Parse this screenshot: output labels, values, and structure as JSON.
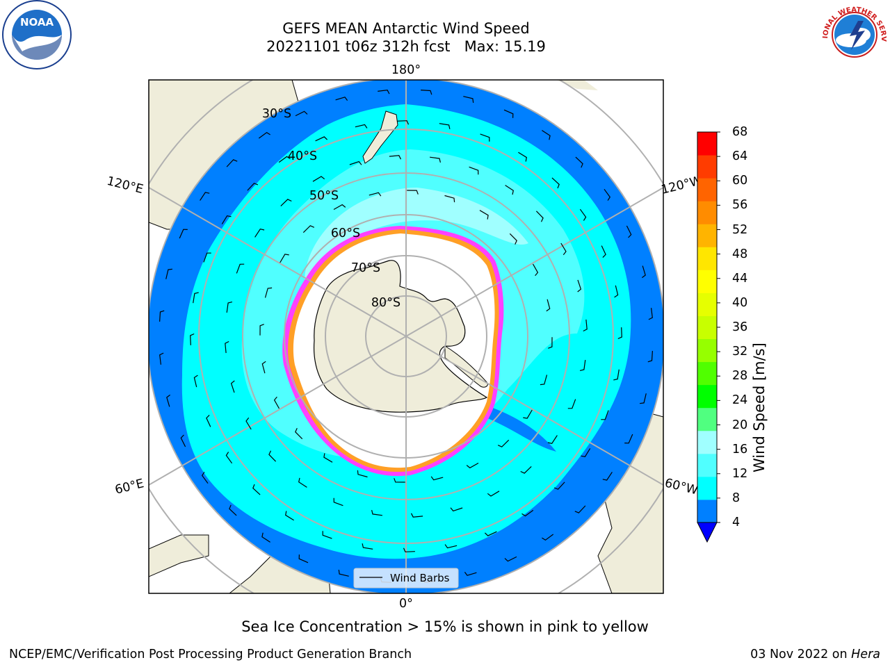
{
  "title": {
    "line1": "GEFS MEAN Antarctic Wind Speed",
    "line2": "20221101 t06z 312h fcst   Max: 15.19"
  },
  "logos": {
    "left": {
      "icon": "noaa-logo",
      "text": "NOAA"
    },
    "right": {
      "icon": "national-weather-service-logo",
      "text": "NATIONAL WEATHER SERVICE"
    }
  },
  "map": {
    "projection": "south-polar-stereographic",
    "longitude_labels": [
      "180°",
      "120°E",
      "120°W",
      "60°E",
      "60°W",
      "0°"
    ],
    "latitude_labels": [
      "30°S",
      "40°S",
      "50°S",
      "60°S",
      "70°S",
      "80°S"
    ],
    "legend": {
      "label": "Wind Barbs"
    },
    "colors": {
      "land": "#efedda",
      "sea_ice": "#ffffff",
      "ice_edge_low": "#ff40ff",
      "ice_edge_high": "#ffb000",
      "grid": "#b0b0b0"
    }
  },
  "colorbar": {
    "label": "Wind Speed [m/s]",
    "ticks": [
      "68",
      "64",
      "60",
      "56",
      "52",
      "48",
      "44",
      "40",
      "36",
      "32",
      "28",
      "24",
      "20",
      "16",
      "12",
      "8",
      "4"
    ],
    "colors": [
      "#ff0000",
      "#ff3c00",
      "#ff6400",
      "#ff8c00",
      "#ffb400",
      "#ffe600",
      "#ffff00",
      "#e6ff00",
      "#c8ff00",
      "#96ff00",
      "#50ff00",
      "#00ff00",
      "#50ff80",
      "#a0ffff",
      "#50ffff",
      "#00ffff",
      "#0080ff"
    ],
    "under_color": "#0000ff"
  },
  "caption": "Sea Ice Concentration > 15% is shown in pink to yellow",
  "footer": {
    "left": "NCEP/EMC/Verification Post Processing Product Generation Branch",
    "right_date": "03 Nov 2022 on ",
    "right_machine": "Hera"
  }
}
